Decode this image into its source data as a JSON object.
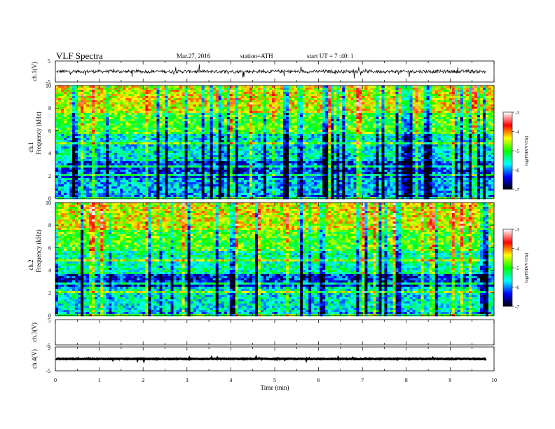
{
  "header": {
    "title": "VLF  Spectra",
    "date": "Mar.27, 2016",
    "station": "station=ATH",
    "start": "start  UT  =    7  :40: 1"
  },
  "chart_data": [
    {
      "type": "line",
      "panel": "ch1-waveform",
      "ylabel": "ch.1(V)",
      "ylim": [
        -5,
        5
      ],
      "yticks": [
        "5",
        "-5"
      ],
      "xlim": [
        0,
        10
      ],
      "data_until_min": 9.82,
      "baseline_v": 0.0,
      "noise_amplitude_v": 1.5
    },
    {
      "type": "heatmap",
      "panel": "ch1-spectrogram",
      "ylabel": "Frequency  (kHz)",
      "channel_label": "ch.1",
      "ylim_khz": [
        0,
        10
      ],
      "yticks": [
        "0",
        "2",
        "4",
        "6",
        "8",
        "10"
      ],
      "colorbar": {
        "label": "log(PSD(V²/Hz)",
        "range": [
          -7,
          -3
        ],
        "ticks": [
          "-3",
          "-4",
          "-5",
          "-6",
          "-7"
        ]
      },
      "bands": [
        {
          "from_khz": 0.0,
          "to_khz": 0.3,
          "log_psd": -6.0
        },
        {
          "from_khz": 0.3,
          "to_khz": 1.8,
          "log_psd": -5.8
        },
        {
          "from_khz": 1.8,
          "to_khz": 3.2,
          "log_psd": -6.2
        },
        {
          "from_khz": 3.2,
          "to_khz": 5.8,
          "log_psd": -5.6
        },
        {
          "from_khz": 5.8,
          "to_khz": 7.5,
          "log_psd": -4.9
        },
        {
          "from_khz": 7.5,
          "to_khz": 10.0,
          "log_psd": -4.4
        }
      ]
    },
    {
      "type": "heatmap",
      "panel": "ch2-spectrogram",
      "ylabel": "Frequency  (kHz)",
      "channel_label": "ch.2",
      "ylim_khz": [
        0,
        10
      ],
      "yticks": [
        "0",
        "2",
        "4",
        "6",
        "8",
        "10"
      ],
      "colorbar": {
        "label": "log(PSD(V²/Hz)",
        "range": [
          -7,
          -3
        ],
        "ticks": [
          "-3",
          "-4",
          "-5",
          "-6",
          "-7"
        ]
      },
      "bands": [
        {
          "from_khz": 0.0,
          "to_khz": 0.4,
          "log_psd": -5.9
        },
        {
          "from_khz": 0.4,
          "to_khz": 2.6,
          "log_psd": -5.6
        },
        {
          "from_khz": 2.6,
          "to_khz": 3.6,
          "log_psd": -6.3
        },
        {
          "from_khz": 3.6,
          "to_khz": 5.8,
          "log_psd": -5.4
        },
        {
          "from_khz": 5.8,
          "to_khz": 7.5,
          "log_psd": -4.9
        },
        {
          "from_khz": 7.5,
          "to_khz": 10.0,
          "log_psd": -4.4
        }
      ]
    },
    {
      "type": "line",
      "panel": "ch3-waveform",
      "ylabel": "ch.3(V)",
      "ylim": [
        -5,
        5
      ],
      "yticks": [
        "5",
        "-5"
      ],
      "xlim": [
        0,
        10
      ],
      "empty": true
    },
    {
      "type": "line",
      "panel": "ch4-waveform",
      "ylabel": "ch.4(V)",
      "ylim": [
        -5,
        5
      ],
      "yticks": [
        "5",
        "-5"
      ],
      "xlim": [
        0,
        10
      ],
      "data_until_min": 9.82,
      "baseline_v": 0.0,
      "noise_amplitude_v": 0.3
    }
  ],
  "x_axis": {
    "label": "Time  (min)",
    "ticks": [
      "0",
      "1",
      "2",
      "3",
      "4",
      "5",
      "6",
      "7",
      "8",
      "9",
      "10"
    ]
  },
  "colors": {
    "waveform": "#000000",
    "colormap": [
      "#000000",
      "#0000ff",
      "#00ffff",
      "#00ff00",
      "#ffff00",
      "#ff0000",
      "#ffffff"
    ]
  }
}
